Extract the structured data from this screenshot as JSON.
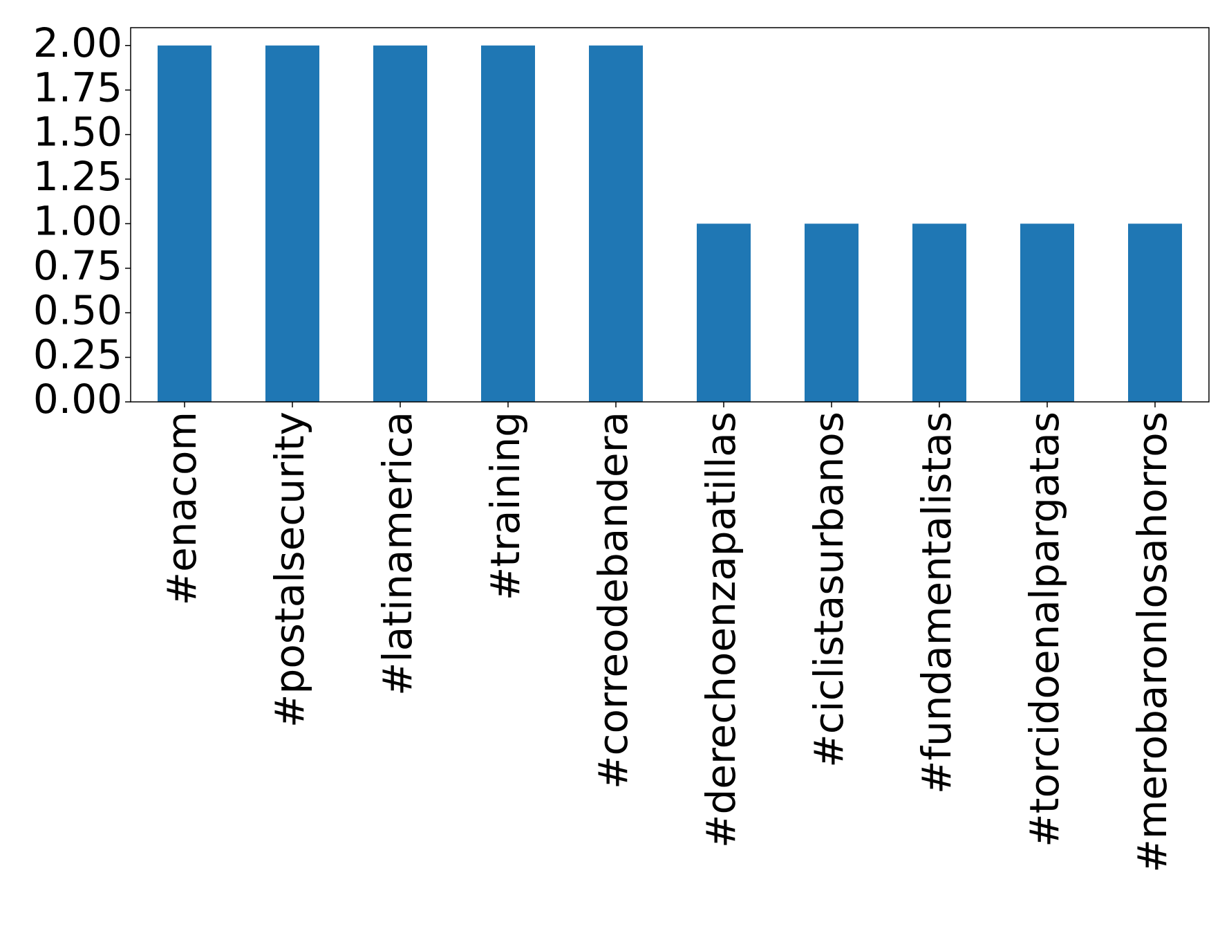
{
  "chart_data": {
    "type": "bar",
    "categories": [
      "#enacom",
      "#postalsecurity",
      "#latinamerica",
      "#training",
      "#correodebandera",
      "#derechoenzapatillas",
      "#ciclistasurbanos",
      "#fundamentalistas",
      "#torcidoenalpargatas",
      "#merobaronlosahorros"
    ],
    "values": [
      2,
      2,
      2,
      2,
      2,
      1,
      1,
      1,
      1,
      1
    ],
    "color": "#1f77b4",
    "ylim": [
      0,
      2.1
    ],
    "yticks": [
      {
        "value": 0,
        "label": "0.00"
      },
      {
        "value": 0.25,
        "label": "0.25"
      },
      {
        "value": 0.5,
        "label": "0.50"
      },
      {
        "value": 0.75,
        "label": "0.75"
      },
      {
        "value": 1,
        "label": "1.00"
      },
      {
        "value": 1.25,
        "label": "1.25"
      },
      {
        "value": 1.5,
        "label": "1.50"
      },
      {
        "value": 1.75,
        "label": "1.75"
      },
      {
        "value": 2,
        "label": "2.00"
      }
    ],
    "grid": false
  }
}
